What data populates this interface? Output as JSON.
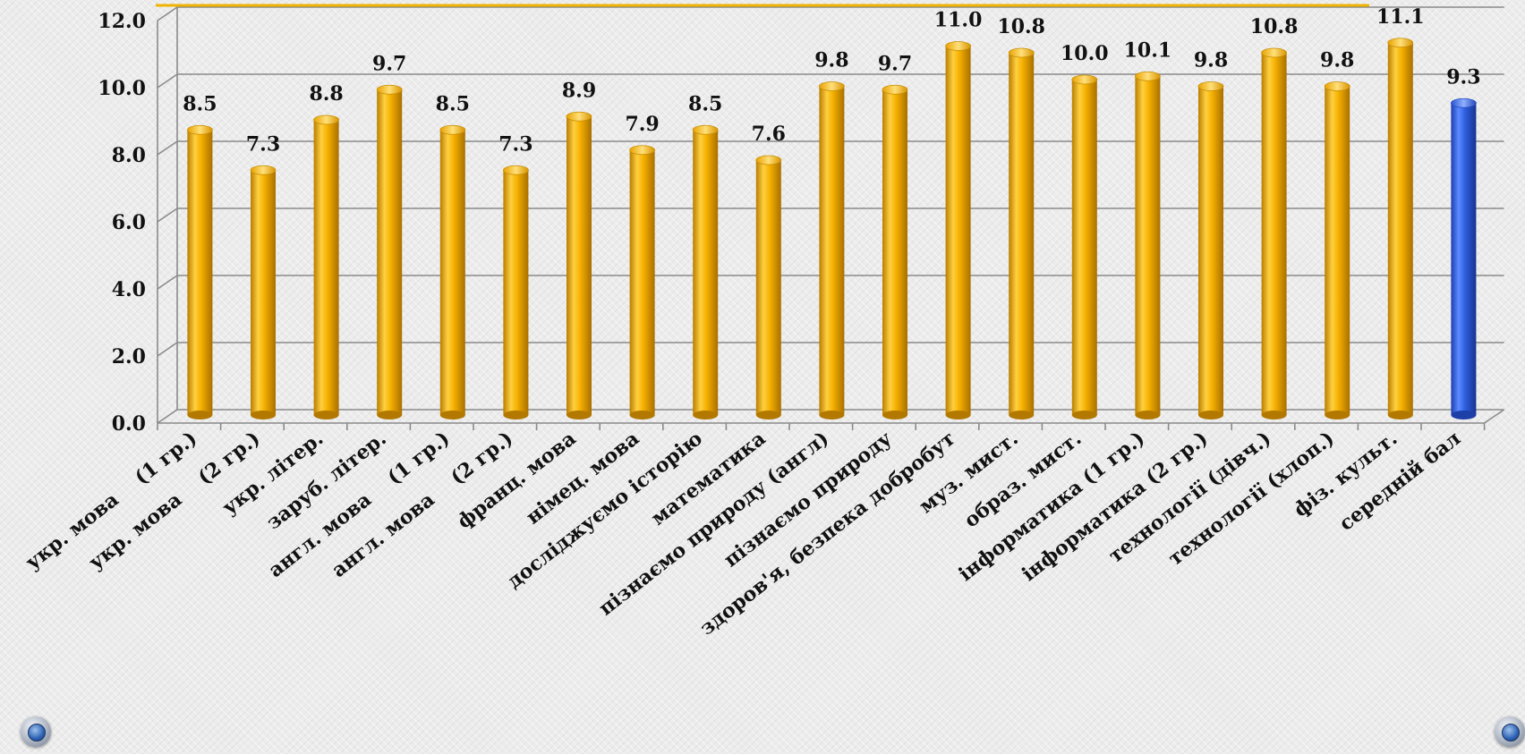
{
  "chart_data": {
    "type": "bar",
    "categories": [
      "укр. мова    (1 гр.)",
      "укр. мова    (2 гр.)",
      "укр. літер.",
      "заруб. літер.",
      "англ. мова    (1 гр.)",
      "англ. мова    (2 гр.)",
      "франц. мова",
      "нiмец. мова",
      "досліджуємо історію",
      "математика",
      "пізнаємо природу (англ)",
      "пізнаємо природу",
      "здоров'я, безпека добробут",
      "муз. мист.",
      "образ. мист.",
      "інформатика (1 гр.)",
      "інформатика (2 гр.)",
      "технології (дівч.)",
      "технології (хлоп.)",
      "фіз. культ.",
      "середній бал"
    ],
    "values": [
      8.5,
      7.3,
      8.8,
      9.7,
      8.5,
      7.3,
      8.9,
      7.9,
      8.5,
      7.6,
      9.8,
      9.7,
      11.0,
      10.8,
      10.0,
      10.1,
      9.8,
      10.8,
      9.8,
      11.1,
      9.3
    ],
    "value_labels": [
      "8.5",
      "7.3",
      "8.8",
      "9.7",
      "8.5",
      "7.3",
      "8.9",
      "7.9",
      "8.5",
      "7.6",
      "9.8",
      "9.7",
      "11.0",
      "10.8",
      "10.0",
      "10.1",
      "9.8",
      "10.8",
      "9.8",
      "11.1",
      "9.3"
    ],
    "highlight_index": 20,
    "yticks": [
      "0.0",
      "2.0",
      "4.0",
      "6.0",
      "8.0",
      "10.0",
      "12.0"
    ],
    "ylim": [
      0,
      12
    ],
    "grid": true,
    "legend": "none",
    "title": "",
    "xlabel": "",
    "ylabel": "",
    "colors": {
      "bar": "#f3ae00",
      "bar_highlight": "#2f5fe0",
      "accent_line": "#f0b400",
      "grid": "#8a8a8a"
    }
  },
  "nav": {
    "left_icon": "globe-icon",
    "right_icon": "globe-icon"
  }
}
